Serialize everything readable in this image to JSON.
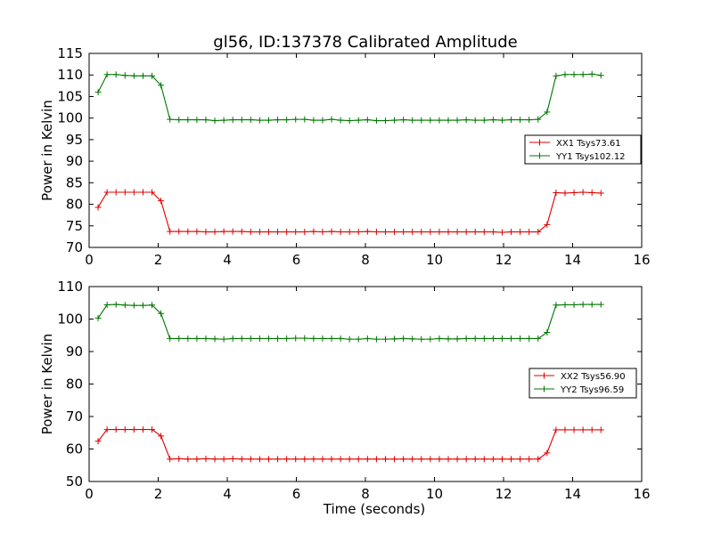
{
  "figure": {
    "title": "gl56, ID:137378 Calibrated Amplitude"
  },
  "chart_data": [
    {
      "type": "line",
      "title": "gl56, ID:137378 Calibrated Amplitude",
      "xlabel": "",
      "ylabel": "Power in Kelvin",
      "xlim": [
        0,
        16
      ],
      "ylim": [
        70,
        115
      ],
      "xticks": [
        0,
        2,
        4,
        6,
        8,
        10,
        12,
        14,
        16
      ],
      "yticks": [
        70,
        75,
        80,
        85,
        90,
        95,
        100,
        105,
        110,
        115
      ],
      "grid": false,
      "legend_position": "right",
      "x": [
        0.26,
        0.52,
        0.78,
        1.04,
        1.3,
        1.56,
        1.82,
        2.08,
        2.34,
        2.6,
        2.86,
        3.12,
        3.38,
        3.64,
        3.9,
        4.16,
        4.42,
        4.68,
        4.94,
        5.2,
        5.46,
        5.72,
        5.98,
        6.24,
        6.5,
        6.76,
        7.02,
        7.28,
        7.54,
        7.8,
        8.06,
        8.32,
        8.58,
        8.84,
        9.1,
        9.36,
        9.62,
        9.88,
        10.14,
        10.4,
        10.66,
        10.92,
        11.18,
        11.44,
        11.7,
        11.96,
        12.22,
        12.48,
        12.74,
        13.0,
        13.26,
        13.52,
        13.78,
        14.04,
        14.3,
        14.56,
        14.82
      ],
      "series": [
        {
          "name": "XX1 Tsys73.61",
          "color": "#dd0000",
          "values": [
            79.3,
            82.8,
            82.8,
            82.8,
            82.8,
            82.8,
            82.8,
            80.8,
            73.7,
            73.7,
            73.7,
            73.7,
            73.6,
            73.6,
            73.7,
            73.7,
            73.7,
            73.6,
            73.6,
            73.6,
            73.6,
            73.6,
            73.6,
            73.6,
            73.7,
            73.6,
            73.7,
            73.6,
            73.6,
            73.6,
            73.7,
            73.6,
            73.6,
            73.6,
            73.6,
            73.6,
            73.6,
            73.6,
            73.6,
            73.6,
            73.6,
            73.6,
            73.6,
            73.6,
            73.6,
            73.5,
            73.6,
            73.6,
            73.6,
            73.6,
            75.3,
            82.7,
            82.6,
            82.7,
            82.8,
            82.7,
            82.6
          ]
        },
        {
          "name": "YY1 Tsys102.12",
          "color": "#007700",
          "values": [
            106.0,
            110.1,
            110.1,
            109.9,
            109.8,
            109.8,
            109.8,
            107.6,
            99.7,
            99.6,
            99.6,
            99.6,
            99.6,
            99.4,
            99.5,
            99.6,
            99.6,
            99.6,
            99.5,
            99.5,
            99.6,
            99.6,
            99.7,
            99.7,
            99.5,
            99.5,
            99.7,
            99.5,
            99.4,
            99.5,
            99.6,
            99.4,
            99.4,
            99.5,
            99.6,
            99.5,
            99.5,
            99.5,
            99.5,
            99.5,
            99.5,
            99.6,
            99.5,
            99.5,
            99.6,
            99.5,
            99.6,
            99.6,
            99.6,
            99.7,
            101.4,
            109.8,
            110.1,
            110.1,
            110.1,
            110.2,
            109.9
          ]
        }
      ]
    },
    {
      "type": "line",
      "title": "",
      "xlabel": "Time (seconds)",
      "ylabel": "Power in Kelvin",
      "xlim": [
        0,
        16
      ],
      "ylim": [
        50,
        110
      ],
      "xticks": [
        0,
        2,
        4,
        6,
        8,
        10,
        12,
        14,
        16
      ],
      "yticks": [
        50,
        60,
        70,
        80,
        90,
        100,
        110
      ],
      "grid": false,
      "legend_position": "right",
      "x": [
        0.26,
        0.52,
        0.78,
        1.04,
        1.3,
        1.56,
        1.82,
        2.08,
        2.34,
        2.6,
        2.86,
        3.12,
        3.38,
        3.64,
        3.9,
        4.16,
        4.42,
        4.68,
        4.94,
        5.2,
        5.46,
        5.72,
        5.98,
        6.24,
        6.5,
        6.76,
        7.02,
        7.28,
        7.54,
        7.8,
        8.06,
        8.32,
        8.58,
        8.84,
        9.1,
        9.36,
        9.62,
        9.88,
        10.14,
        10.4,
        10.66,
        10.92,
        11.18,
        11.44,
        11.7,
        11.96,
        12.22,
        12.48,
        12.74,
        13.0,
        13.26,
        13.52,
        13.78,
        14.04,
        14.3,
        14.56,
        14.82
      ],
      "series": [
        {
          "name": "XX2 Tsys56.90",
          "color": "#dd0000",
          "values": [
            62.4,
            66.0,
            66.0,
            66.0,
            66.0,
            66.0,
            66.0,
            64.0,
            56.9,
            57.0,
            56.9,
            56.9,
            57.0,
            56.9,
            56.9,
            57.0,
            56.9,
            56.9,
            56.9,
            56.9,
            56.9,
            56.9,
            56.9,
            56.9,
            56.9,
            56.9,
            56.9,
            56.9,
            56.9,
            56.9,
            56.9,
            56.9,
            56.9,
            56.9,
            56.9,
            56.9,
            56.9,
            56.9,
            56.9,
            56.9,
            56.9,
            56.9,
            56.9,
            56.9,
            56.9,
            56.9,
            56.9,
            56.9,
            56.9,
            56.9,
            58.8,
            65.9,
            65.9,
            65.9,
            65.9,
            65.9,
            65.9
          ]
        },
        {
          "name": "YY2 Tsys96.59",
          "color": "#007700",
          "values": [
            100.3,
            104.4,
            104.5,
            104.3,
            104.2,
            104.2,
            104.3,
            101.7,
            94.0,
            94.0,
            94.0,
            94.0,
            94.0,
            93.9,
            93.8,
            94.0,
            94.0,
            94.0,
            94.0,
            94.0,
            94.0,
            94.0,
            94.1,
            94.1,
            94.0,
            94.0,
            94.0,
            94.0,
            93.8,
            93.8,
            94.0,
            93.8,
            93.8,
            93.9,
            94.0,
            93.9,
            93.8,
            93.8,
            94.0,
            93.9,
            93.9,
            94.0,
            94.0,
            94.0,
            94.0,
            94.0,
            94.0,
            94.0,
            94.0,
            94.0,
            95.9,
            104.3,
            104.4,
            104.4,
            104.5,
            104.5,
            104.5
          ]
        }
      ]
    }
  ]
}
